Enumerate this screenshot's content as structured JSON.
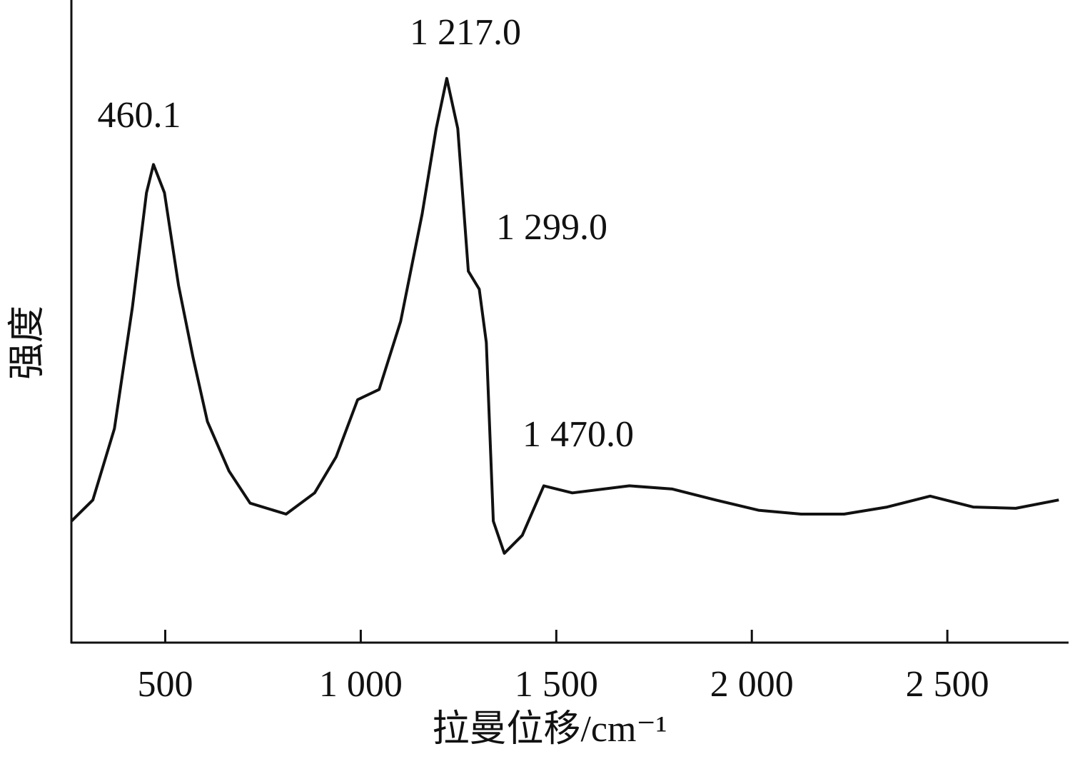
{
  "chart_data": {
    "type": "line",
    "x_label": "拉曼位移/cm⁻¹",
    "y_label": "强度",
    "x": [
      260,
      315,
      370,
      416,
      452,
      470,
      498,
      534,
      571,
      608,
      663,
      717,
      809,
      882,
      937,
      992,
      1047,
      1102,
      1157,
      1193,
      1220,
      1248,
      1275,
      1303,
      1321,
      1339,
      1367,
      1413,
      1468,
      1541,
      1687,
      1797,
      1907,
      2017,
      2126,
      2236,
      2346,
      2456,
      2566,
      2675,
      2785
    ],
    "series": [
      {
        "color": "#111111",
        "values": [
          18.9,
          22.2,
          33.3,
          52.2,
          70,
          74.4,
          70,
          55.6,
          44.4,
          34.4,
          26.7,
          21.7,
          20,
          23.3,
          28.9,
          37.8,
          39.4,
          50,
          66.7,
          80,
          87.8,
          80,
          57.8,
          55,
          46.7,
          18.9,
          13.9,
          16.7,
          24.4,
          23.3,
          24.4,
          23.9,
          22.2,
          20.6,
          20,
          20,
          21.1,
          22.8,
          21.1,
          20.9,
          22.2
        ]
      }
    ],
    "annotations": [
      "460.1",
      "1 217.0",
      "1 299.0",
      "1 470.0"
    ],
    "xlim": [
      260,
      2810
    ],
    "ylim": [
      0,
      100
    ],
    "xticks": [
      500,
      {
        "value": 1000,
        "label": "1 000"
      },
      {
        "value": 1500,
        "label": "1 500"
      },
      {
        "value": 2000,
        "label": "2 000"
      },
      {
        "value": 2500,
        "label": "2 500"
      }
    ]
  }
}
